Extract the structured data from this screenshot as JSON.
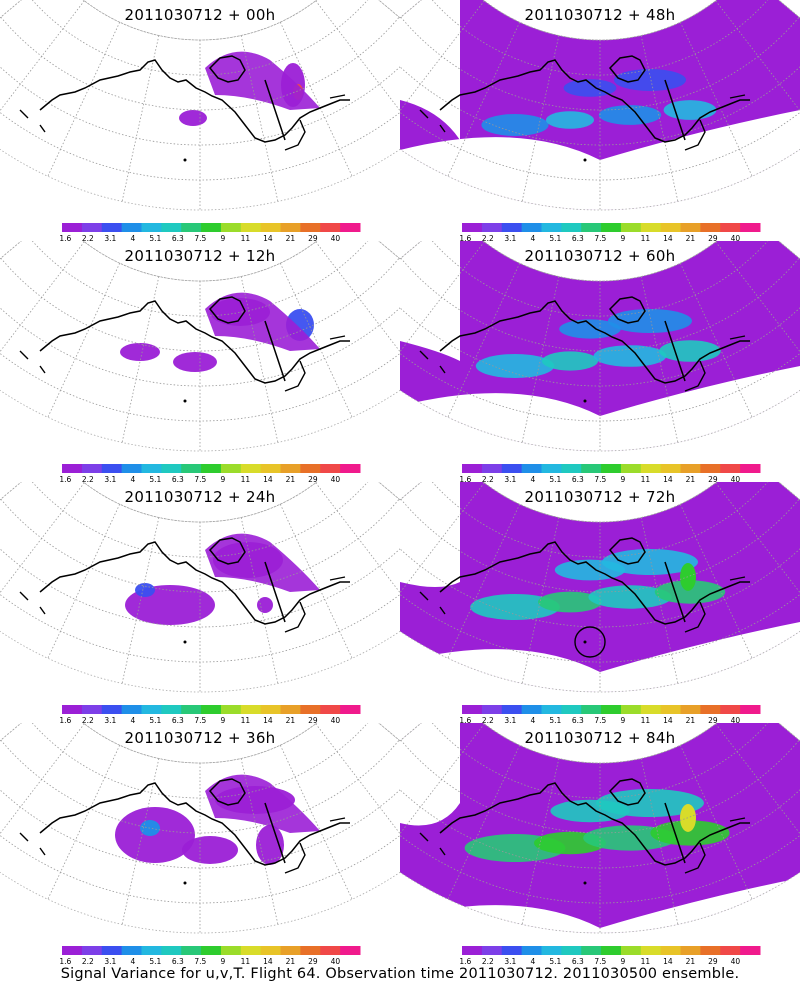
{
  "panels": [
    {
      "title": "2011030712 + 00h",
      "level": 0
    },
    {
      "title": "2011030712 + 48h",
      "level": 4
    },
    {
      "title": "2011030712 + 12h",
      "level": 1
    },
    {
      "title": "2011030712 + 60h",
      "level": 5
    },
    {
      "title": "2011030712 + 24h",
      "level": 2
    },
    {
      "title": "2011030712 + 72h",
      "level": 6
    },
    {
      "title": "2011030712 + 36h",
      "level": 3
    },
    {
      "title": "2011030712 + 84h",
      "level": 7
    }
  ],
  "colorbar": {
    "labels": [
      "1.6",
      "2.2",
      "3.1",
      "4",
      "5.1",
      "6.3",
      "7.5",
      "9",
      "11",
      "14",
      "21",
      "29",
      "40"
    ],
    "colors": [
      "#9b1fd6",
      "#7d3fe8",
      "#3b4ff0",
      "#1f8fe8",
      "#23b8e0",
      "#1fc9c0",
      "#28c878",
      "#2ecc2e",
      "#9bdc2a",
      "#d8dc2a",
      "#e8c428",
      "#e8a028",
      "#e87028",
      "#f04848",
      "#f01a8c"
    ]
  },
  "footer": "Signal Variance for u,v,T. Flight 64. Observation time 2011030712. 2011030500 ensemble."
}
